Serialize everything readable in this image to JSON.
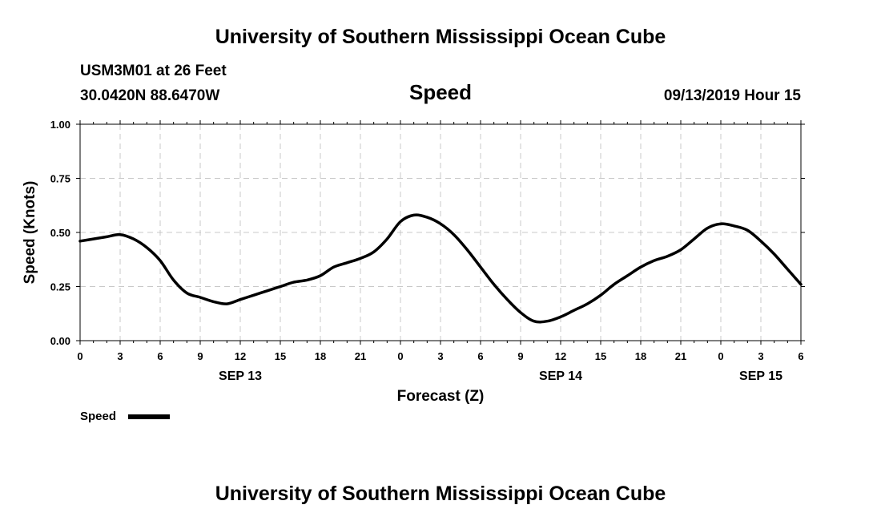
{
  "chart_data": {
    "type": "line",
    "title": "University of Southern Mississippi Ocean Cube",
    "footer": "University of Southern Mississippi Ocean Cube",
    "station": "USM3M01 at 26 Feet",
    "location": "30.0420N 88.6470W",
    "variable_title": "Speed",
    "timestamp": "09/13/2019 Hour 15",
    "xlabel": "Forecast (Z)",
    "ylabel": "Speed (Knots)",
    "xlim": [
      0,
      54
    ],
    "ylim": [
      0,
      1
    ],
    "grid": true,
    "legend": "bottom-left",
    "x_tick_values": [
      0,
      3,
      6,
      9,
      12,
      15,
      18,
      21,
      24,
      27,
      30,
      33,
      36,
      39,
      42,
      45,
      48,
      51,
      54
    ],
    "x_tick_labels": [
      "0",
      "3",
      "6",
      "9",
      "12",
      "15",
      "18",
      "21",
      "0",
      "3",
      "6",
      "9",
      "12",
      "15",
      "18",
      "21",
      "0",
      "3",
      "6"
    ],
    "y_tick_values": [
      0,
      0.25,
      0.5,
      0.75,
      1
    ],
    "y_tick_labels": [
      "0.00",
      "0.25",
      "0.50",
      "0.75",
      "1.00"
    ],
    "date_labels": [
      {
        "x": 12,
        "label": "SEP 13"
      },
      {
        "x": 36,
        "label": "SEP 14"
      },
      {
        "x": 51,
        "label": "SEP 15"
      }
    ],
    "series": [
      {
        "name": "Speed",
        "color": "#000000",
        "x": [
          0,
          1,
          2,
          3,
          4,
          5,
          6,
          7,
          8,
          9,
          10,
          11,
          12,
          13,
          14,
          15,
          16,
          17,
          18,
          19,
          20,
          21,
          22,
          23,
          24,
          25,
          26,
          27,
          28,
          29,
          30,
          31,
          32,
          33,
          34,
          35,
          36,
          37,
          38,
          39,
          40,
          41,
          42,
          43,
          44,
          45,
          46,
          47,
          48,
          49,
          50,
          51,
          52,
          53,
          54
        ],
        "values": [
          0.46,
          0.47,
          0.48,
          0.49,
          0.47,
          0.43,
          0.37,
          0.28,
          0.22,
          0.2,
          0.18,
          0.17,
          0.19,
          0.21,
          0.23,
          0.25,
          0.27,
          0.28,
          0.3,
          0.34,
          0.36,
          0.38,
          0.41,
          0.47,
          0.55,
          0.58,
          0.57,
          0.54,
          0.49,
          0.42,
          0.34,
          0.26,
          0.19,
          0.13,
          0.09,
          0.09,
          0.11,
          0.14,
          0.17,
          0.21,
          0.26,
          0.3,
          0.34,
          0.37,
          0.39,
          0.42,
          0.47,
          0.52,
          0.54,
          0.53,
          0.51,
          0.46,
          0.4,
          0.33,
          0.26
        ]
      }
    ]
  }
}
